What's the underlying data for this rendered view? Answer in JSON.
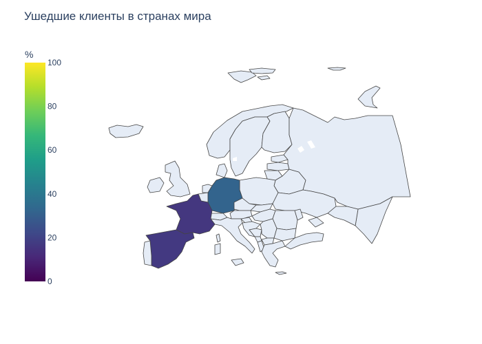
{
  "title": "Ушедшие клиенты в странах мира",
  "colorbar": {
    "title": "%",
    "min": 0,
    "max": 100,
    "ticks": [
      "0",
      "20",
      "40",
      "60",
      "80",
      "100"
    ],
    "colorscale": [
      "#440154",
      "#482878",
      "#3e4989",
      "#31688e",
      "#26828e",
      "#1f9e89",
      "#35b779",
      "#6ece58",
      "#b5de2b",
      "#fde725"
    ]
  },
  "chart_data": {
    "type": "choropleth",
    "scope": "europe",
    "series": [
      {
        "location": "Germany",
        "value": 32
      },
      {
        "location": "France",
        "value": 16
      },
      {
        "location": "Spain",
        "value": 17
      }
    ],
    "no_data_color": "#e5ecf6",
    "zrange": [
      0,
      100
    ]
  }
}
